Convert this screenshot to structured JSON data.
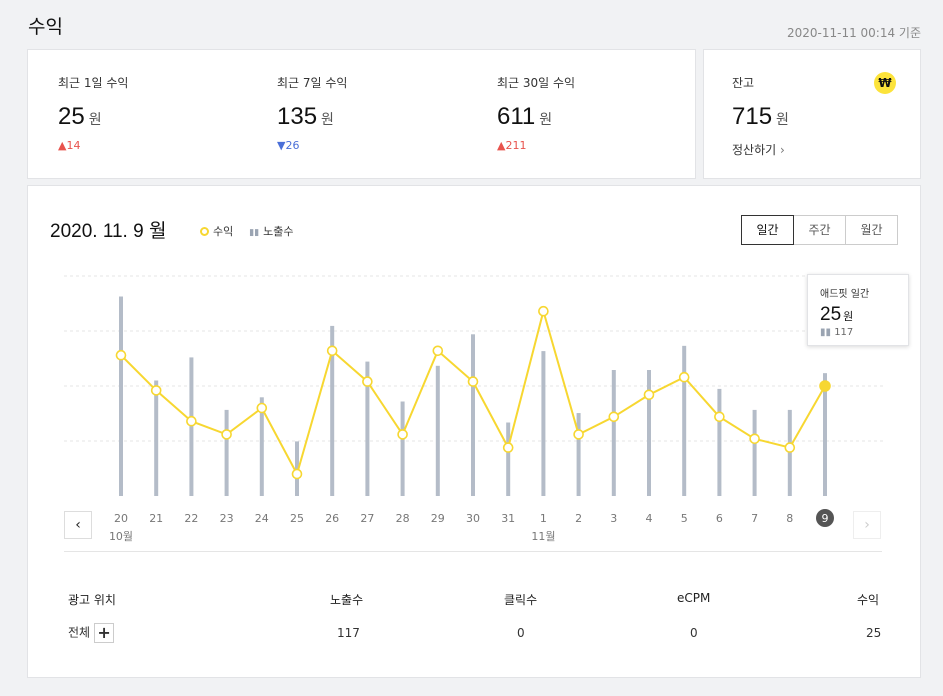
{
  "header": {
    "title": "수익",
    "timestamp": "2020-11-11 00:14 기준"
  },
  "summary": [
    {
      "label": "최근 1일 수익",
      "value": "25",
      "unit": "원",
      "delta": "14",
      "direction": "up"
    },
    {
      "label": "최근 7일 수익",
      "value": "135",
      "unit": "원",
      "delta": "26",
      "direction": "down"
    },
    {
      "label": "최근 30일 수익",
      "value": "611",
      "unit": "원",
      "delta": "211",
      "direction": "up"
    }
  ],
  "balance": {
    "label": "잔고",
    "value": "715",
    "unit": "원",
    "settle_label": "정산하기",
    "icon": "won-icon",
    "icon_glyph": "₩"
  },
  "chart_header": {
    "date": "2020. 11. 9 월",
    "legend_revenue": "수익",
    "legend_impressions": "노출수"
  },
  "period_tabs": [
    "일간",
    "주간",
    "월간"
  ],
  "tooltip": {
    "title": "애드핏 일간",
    "value": "25",
    "unit": "원",
    "impressions": "117"
  },
  "colors": {
    "line": "#f7d731",
    "bar": "#b4bcc8",
    "up": "#e8534d",
    "down": "#4a6fd8",
    "selected_day": "#555555"
  },
  "chart_data": {
    "type": "bar+line",
    "x": [
      "20",
      "21",
      "22",
      "23",
      "24",
      "25",
      "26",
      "27",
      "28",
      "29",
      "30",
      "31",
      "1",
      "2",
      "3",
      "4",
      "5",
      "6",
      "7",
      "8",
      "9"
    ],
    "month_labels": [
      {
        "at": "20",
        "label": "10월"
      },
      {
        "at": "1",
        "label": "11월"
      }
    ],
    "series": [
      {
        "name": "수익",
        "type": "line",
        "values": [
          32,
          24,
          17,
          14,
          20,
          5,
          33,
          26,
          14,
          33,
          26,
          11,
          42,
          14,
          18,
          23,
          27,
          18,
          13,
          11,
          25
        ]
      },
      {
        "name": "노출수",
        "type": "bar",
        "values": [
          190,
          110,
          132,
          82,
          94,
          52,
          162,
          128,
          90,
          124,
          154,
          70,
          138,
          79,
          120,
          120,
          143,
          102,
          82,
          82,
          117
        ]
      }
    ],
    "selected": "9",
    "grid": true
  },
  "table": {
    "headers": [
      "광고 위치",
      "노출수",
      "클릭수",
      "eCPM",
      "수익"
    ],
    "row": {
      "name": "전체",
      "impressions": "117",
      "clicks": "0",
      "ecpm": "0",
      "revenue": "25"
    }
  }
}
